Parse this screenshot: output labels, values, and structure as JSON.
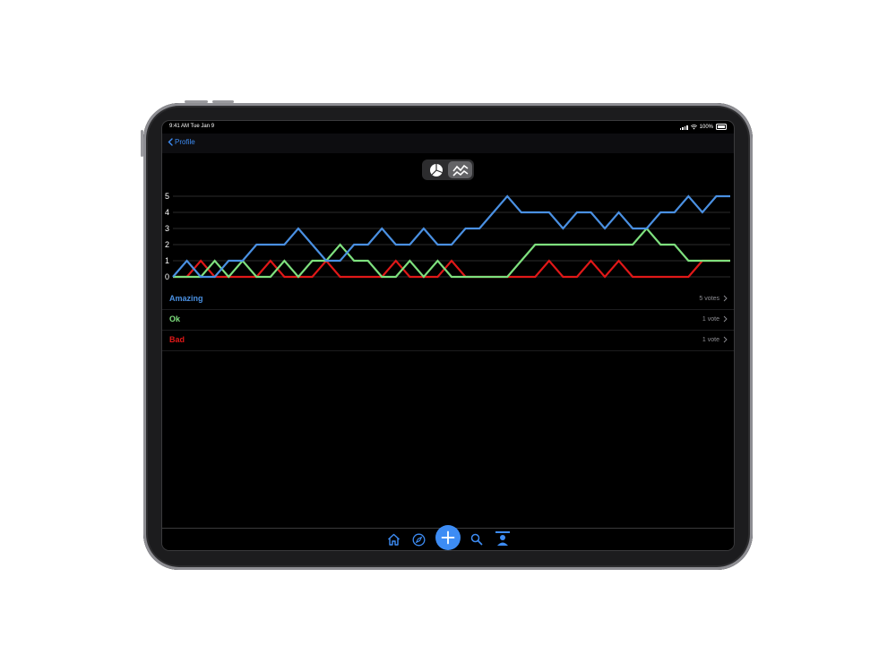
{
  "status_bar": {
    "time": "9:41 AM  Tue Jan 9",
    "battery": "100%"
  },
  "nav": {
    "back_label": "Profile"
  },
  "segmented": {
    "options": [
      "pie-chart-icon",
      "line-chart-icon"
    ],
    "selected": 1
  },
  "chart_data": {
    "type": "line",
    "x": [
      1,
      2,
      3,
      4,
      5,
      6,
      7,
      8,
      9,
      10,
      11,
      12,
      13,
      14,
      15,
      16,
      17,
      18,
      19,
      20,
      21,
      22,
      23,
      24,
      25,
      26,
      27,
      28,
      29,
      30,
      31,
      32,
      33,
      34,
      35,
      36,
      37,
      38,
      39,
      40,
      41
    ],
    "yticks": [
      0,
      1,
      2,
      3,
      4,
      5
    ],
    "ylim": [
      0,
      5
    ],
    "grid": true,
    "series": [
      {
        "name": "Amazing",
        "color": "#4a90e2",
        "values": [
          0,
          1,
          0,
          0,
          1,
          1,
          2,
          2,
          2,
          3,
          2,
          1,
          1,
          2,
          2,
          3,
          2,
          2,
          3,
          2,
          2,
          3,
          3,
          4,
          5,
          4,
          4,
          4,
          3,
          4,
          4,
          3,
          4,
          3,
          3,
          4,
          4,
          5,
          4,
          5,
          5
        ]
      },
      {
        "name": "Ok",
        "color": "#7ee07e",
        "values": [
          0,
          0,
          0,
          1,
          0,
          1,
          0,
          0,
          1,
          0,
          1,
          1,
          2,
          1,
          1,
          0,
          0,
          1,
          0,
          1,
          0,
          0,
          0,
          0,
          0,
          1,
          2,
          2,
          2,
          2,
          2,
          2,
          2,
          2,
          3,
          2,
          2,
          1,
          1,
          1,
          1
        ]
      },
      {
        "name": "Bad",
        "color": "#e01818",
        "values": [
          0,
          0,
          1,
          0,
          0,
          0,
          0,
          1,
          0,
          0,
          0,
          1,
          0,
          0,
          0,
          0,
          1,
          0,
          0,
          0,
          1,
          0,
          0,
          0,
          0,
          0,
          0,
          1,
          0,
          0,
          1,
          0,
          1,
          0,
          0,
          0,
          0,
          0,
          1,
          1,
          1
        ]
      }
    ]
  },
  "rows": [
    {
      "label": "Amazing",
      "count": "5 votes",
      "color": "#4a90e2"
    },
    {
      "label": "Ok",
      "count": "1 vote",
      "color": "#7ee07e"
    },
    {
      "label": "Bad",
      "count": "1 vote",
      "color": "#e01818"
    }
  ],
  "tabbar": {
    "items": [
      "home-icon",
      "compass-icon",
      "plus-icon",
      "search-icon",
      "profile-icon"
    ],
    "accent": "#3d8cf4"
  }
}
